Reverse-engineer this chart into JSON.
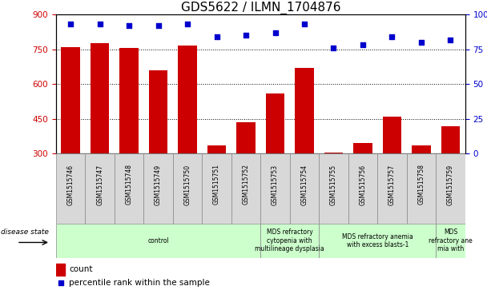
{
  "title": "GDS5622 / ILMN_1704876",
  "samples": [
    "GSM1515746",
    "GSM1515747",
    "GSM1515748",
    "GSM1515749",
    "GSM1515750",
    "GSM1515751",
    "GSM1515752",
    "GSM1515753",
    "GSM1515754",
    "GSM1515755",
    "GSM1515756",
    "GSM1515757",
    "GSM1515758",
    "GSM1515759"
  ],
  "counts": [
    760,
    775,
    755,
    660,
    765,
    335,
    435,
    560,
    670,
    305,
    345,
    460,
    335,
    420
  ],
  "percentiles": [
    93,
    93,
    92,
    92,
    93,
    84,
    85,
    87,
    93,
    76,
    78,
    84,
    80,
    82
  ],
  "ylim_left": [
    300,
    900
  ],
  "ylim_right": [
    0,
    100
  ],
  "yticks_left": [
    300,
    450,
    600,
    750,
    900
  ],
  "yticks_right": [
    0,
    25,
    50,
    75,
    100
  ],
  "bar_color": "#cc0000",
  "dot_color": "#0000cc",
  "disease_groups": [
    {
      "label": "control",
      "start": 0,
      "end": 7
    },
    {
      "label": "MDS refractory\ncytopenia with\nmultilineage dysplasia",
      "start": 7,
      "end": 9
    },
    {
      "label": "MDS refractory anemia\nwith excess blasts-1",
      "start": 9,
      "end": 13
    },
    {
      "label": "MDS\nrefractory ane\nmia with",
      "start": 13,
      "end": 14
    }
  ],
  "disease_box_color": "#ccffcc",
  "sample_box_color": "#d8d8d8",
  "xlabel_disease": "disease state",
  "legend_count": "count",
  "legend_percentile": "percentile rank within the sample",
  "title_fontsize": 11,
  "bar_color_left": "#cc0000",
  "bar_color_right": "#0000cc"
}
